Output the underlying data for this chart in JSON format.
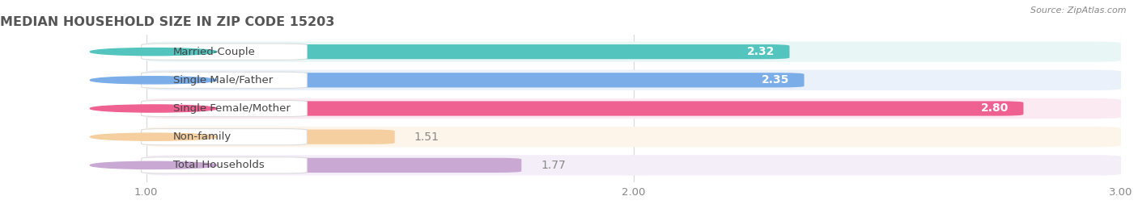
{
  "title": "MEDIAN HOUSEHOLD SIZE IN ZIP CODE 15203",
  "source": "Source: ZipAtlas.com",
  "categories": [
    "Married-Couple",
    "Single Male/Father",
    "Single Female/Mother",
    "Non-family",
    "Total Households"
  ],
  "values": [
    2.32,
    2.35,
    2.8,
    1.51,
    1.77
  ],
  "bar_colors": [
    "#53C5BE",
    "#7BAEE8",
    "#EF6191",
    "#F5CFA0",
    "#C9A8D4"
  ],
  "bar_bg_colors": [
    "#E8F7F6",
    "#EAF1FB",
    "#FCEAF2",
    "#FDF5EA",
    "#F3EEF8"
  ],
  "xmin": 1.0,
  "xmax": 3.0,
  "xticks": [
    1.0,
    2.0,
    3.0
  ],
  "title_fontsize": 11.5,
  "tick_fontsize": 9.5,
  "bar_label_fontsize": 10,
  "category_fontsize": 9.5,
  "background_color": "#ffffff",
  "label_inside_threshold": 2.0,
  "label_inside_color": "#ffffff",
  "label_outside_color": "#888888"
}
